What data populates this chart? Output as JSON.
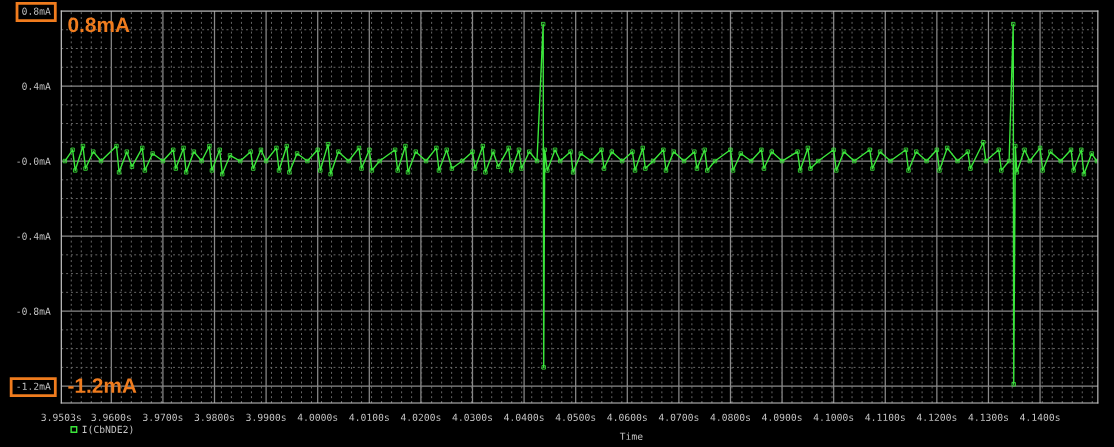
{
  "chart_data": {
    "type": "line",
    "xlabel": "Time",
    "annotations": [
      "0.8mA",
      "-1.2mA"
    ],
    "xlim": [
      3.9503,
      4.1512
    ],
    "ylim": [
      -1.29,
      0.8
    ],
    "xticks": [
      {
        "value": 3.9503,
        "label": "3.9503s"
      },
      {
        "value": 3.96,
        "label": "3.9600s"
      },
      {
        "value": 3.97,
        "label": "3.9700s"
      },
      {
        "value": 3.98,
        "label": "3.9800s"
      },
      {
        "value": 3.99,
        "label": "3.9900s"
      },
      {
        "value": 4.0,
        "label": "4.0000s"
      },
      {
        "value": 4.01,
        "label": "4.0100s"
      },
      {
        "value": 4.02,
        "label": "4.0200s"
      },
      {
        "value": 4.03,
        "label": "4.0300s"
      },
      {
        "value": 4.04,
        "label": "4.0400s"
      },
      {
        "value": 4.05,
        "label": "4.0500s"
      },
      {
        "value": 4.06,
        "label": "4.0600s"
      },
      {
        "value": 4.07,
        "label": "4.0700s"
      },
      {
        "value": 4.08,
        "label": "4.0800s"
      },
      {
        "value": 4.09,
        "label": "4.0900s"
      },
      {
        "value": 4.1,
        "label": "4.1000s"
      },
      {
        "value": 4.11,
        "label": "4.1100s"
      },
      {
        "value": 4.12,
        "label": "4.1200s"
      },
      {
        "value": 4.13,
        "label": "4.1300s"
      },
      {
        "value": 4.14,
        "label": "4.1400s"
      }
    ],
    "yticks": [
      {
        "value": 0.8,
        "label": "0.8mA"
      },
      {
        "value": 0.4,
        "label": "0.4mA"
      },
      {
        "value": 0,
        "label": "-0.0mA"
      },
      {
        "value": -0.4,
        "label": "-0.4mA"
      },
      {
        "value": -0.8,
        "label": "-0.8mA"
      },
      {
        "value": -1.2,
        "label": "-1.2mA"
      }
    ],
    "grid": true,
    "legend": "bottom left",
    "marker": "square",
    "line_style": "solid",
    "series": [
      {
        "name": "I(CbNDE2)",
        "color": "#3ce83c",
        "x": [
          3.951,
          3.9525,
          3.953,
          3.9545,
          3.955,
          3.9565,
          3.958,
          3.961,
          3.9615,
          3.963,
          3.964,
          3.966,
          3.9665,
          3.968,
          3.97,
          3.972,
          3.9725,
          3.974,
          3.9745,
          3.976,
          3.9775,
          3.979,
          3.9795,
          3.981,
          3.9815,
          3.983,
          3.985,
          3.987,
          3.9875,
          3.989,
          3.99,
          3.992,
          3.9925,
          3.994,
          3.9945,
          3.996,
          3.998,
          4.0,
          4.0005,
          4.002,
          4.0025,
          4.004,
          4.006,
          4.008,
          4.0085,
          4.01,
          4.0105,
          4.012,
          4.015,
          4.0155,
          4.017,
          4.0175,
          4.019,
          4.021,
          4.023,
          4.0235,
          4.025,
          4.026,
          4.028,
          4.03,
          4.0305,
          4.032,
          4.0325,
          4.034,
          4.035,
          4.037,
          4.0375,
          4.039,
          4.0395,
          4.041,
          4.0425,
          4.0437,
          4.0438,
          4.044,
          4.0445,
          4.046,
          4.047,
          4.049,
          4.0495,
          4.051,
          4.053,
          4.055,
          4.0555,
          4.057,
          4.059,
          4.061,
          4.0615,
          4.063,
          4.0635,
          4.065,
          4.067,
          4.0675,
          4.069,
          4.071,
          4.073,
          4.0735,
          4.075,
          4.0755,
          4.077,
          4.08,
          4.0805,
          4.082,
          4.084,
          4.086,
          4.0865,
          4.088,
          4.09,
          4.093,
          4.0935,
          4.095,
          4.0955,
          4.097,
          4.1,
          4.1005,
          4.102,
          4.104,
          4.107,
          4.1075,
          4.109,
          4.111,
          4.114,
          4.1145,
          4.116,
          4.118,
          4.12,
          4.1205,
          4.122,
          4.124,
          4.126,
          4.1265,
          4.129,
          4.1295,
          4.132,
          4.1325,
          4.134,
          4.1348,
          4.1349,
          4.1352,
          4.1355,
          4.137,
          4.138,
          4.14,
          4.1405,
          4.142,
          4.144,
          4.146,
          4.1465,
          4.148,
          4.1485,
          4.15,
          4.151
        ],
        "values": [
          0,
          0.06,
          -0.05,
          0.08,
          -0.04,
          0.05,
          0,
          0.08,
          -0.06,
          0.05,
          -0.03,
          0.07,
          -0.05,
          0.04,
          0,
          0.06,
          -0.04,
          0.07,
          -0.06,
          0.05,
          0,
          0.08,
          -0.05,
          0.06,
          -0.07,
          0.03,
          0,
          0.05,
          -0.04,
          0.06,
          0,
          0.07,
          -0.05,
          0.08,
          -0.06,
          0.04,
          0,
          0.06,
          -0.05,
          0.09,
          -0.07,
          0.05,
          0,
          0.07,
          -0.04,
          0.06,
          -0.05,
          0,
          0.06,
          -0.05,
          0.08,
          -0.06,
          0.05,
          0,
          0.07,
          -0.05,
          0.06,
          -0.04,
          0,
          0.05,
          -0.04,
          0.08,
          -0.06,
          0.05,
          -0.03,
          0.07,
          -0.05,
          0.06,
          -0.04,
          0.05,
          0,
          0.73,
          -1.1,
          0.06,
          -0.05,
          0.06,
          0,
          0.05,
          -0.06,
          0.04,
          0,
          0.06,
          -0.04,
          0.05,
          0,
          0.05,
          -0.05,
          0.07,
          -0.04,
          0,
          0.06,
          -0.05,
          0.05,
          0,
          0.05,
          -0.04,
          0.06,
          -0.05,
          0,
          0.06,
          -0.05,
          0.04,
          0,
          0.06,
          -0.04,
          0.05,
          0,
          0.05,
          -0.05,
          0.07,
          -0.04,
          0,
          0.06,
          -0.05,
          0.05,
          0,
          0.06,
          -0.04,
          0.05,
          0,
          0.06,
          -0.05,
          0.05,
          0,
          0.06,
          -0.05,
          0.07,
          0,
          0.05,
          -0.04,
          0.1,
          0,
          0.06,
          -0.05,
          0,
          0.73,
          -1.19,
          0.08,
          -0.06,
          0.06,
          0,
          0.07,
          -0.05,
          0.05,
          0,
          0.06,
          -0.05,
          0.06,
          -0.07,
          0.04,
          0
        ]
      }
    ]
  }
}
